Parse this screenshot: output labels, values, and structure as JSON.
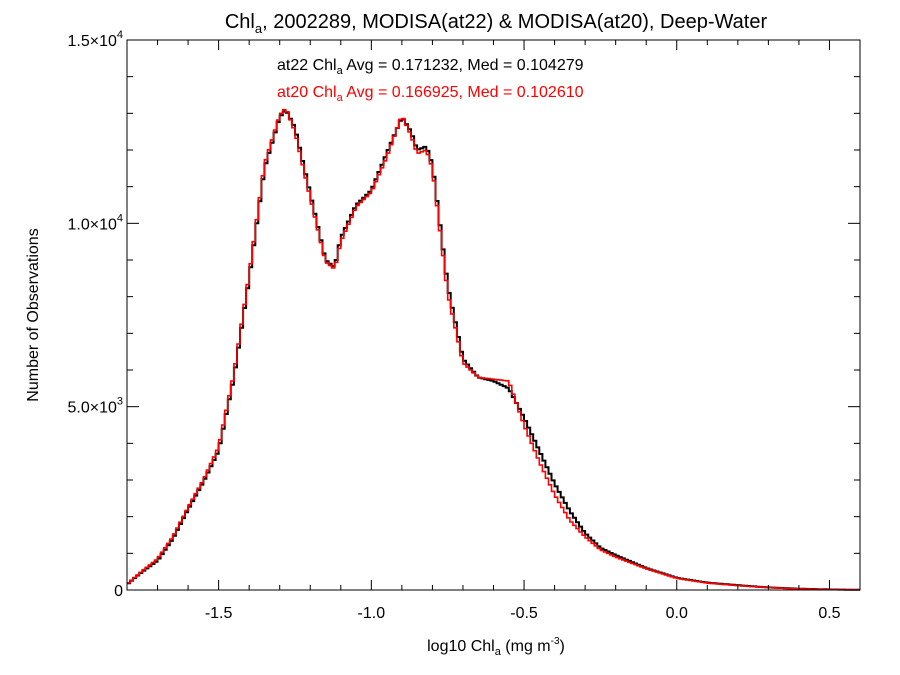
{
  "chart_data": {
    "type": "line",
    "title_main": "Chl",
    "title_sub": "a",
    "title_rest": ", 2002289, MODISA(at22) & MODISA(at20), Deep-Water",
    "xlabel_main": "log10 Chl",
    "xlabel_sub": "a",
    "xlabel_unit_pre": " (mg m",
    "xlabel_unit_sup": "-3",
    "xlabel_unit_post": ")",
    "ylabel": "Number of Observations",
    "xlim": [
      -1.8,
      0.6
    ],
    "ylim": [
      0,
      15000
    ],
    "x_ticks": [
      {
        "value": -1.5,
        "label": "-1.5"
      },
      {
        "value": -1.0,
        "label": "-1.0"
      },
      {
        "value": -0.5,
        "label": "-0.5"
      },
      {
        "value": 0.0,
        "label": "0.0"
      },
      {
        "value": 0.5,
        "label": "0.5"
      }
    ],
    "y_ticks": [
      {
        "value": 0,
        "mantissa": "0",
        "exp": ""
      },
      {
        "value": 5000,
        "mantissa": "5.0×10",
        "exp": "3"
      },
      {
        "value": 10000,
        "mantissa": "1.0×10",
        "exp": "4"
      },
      {
        "value": 15000,
        "mantissa": "1.5×10",
        "exp": "4"
      }
    ],
    "grid": false,
    "annotations": [
      {
        "pre": "at22 Chl",
        "sub": "a",
        "post": " Avg = 0.171232, Med = 0.104279",
        "color": "#000000"
      },
      {
        "pre": "at20 Chl",
        "sub": "a",
        "post": " Avg = 0.166925, Med = 0.102610",
        "color": "#ff0000"
      }
    ],
    "series": [
      {
        "name": "at22",
        "color": "#000000",
        "x": [
          -1.8,
          -1.75,
          -1.7,
          -1.65,
          -1.6,
          -1.55,
          -1.5,
          -1.45,
          -1.4,
          -1.35,
          -1.3,
          -1.28,
          -1.25,
          -1.2,
          -1.15,
          -1.12,
          -1.1,
          -1.05,
          -1.0,
          -0.95,
          -0.9,
          -0.87,
          -0.85,
          -0.82,
          -0.8,
          -0.75,
          -0.7,
          -0.65,
          -0.6,
          -0.55,
          -0.5,
          -0.45,
          -0.4,
          -0.35,
          -0.3,
          -0.25,
          -0.2,
          -0.1,
          0.0,
          0.1,
          0.2,
          0.3,
          0.4,
          0.5,
          0.6
        ],
        "y": [
          150,
          500,
          800,
          1400,
          2200,
          2950,
          3800,
          5800,
          8500,
          11500,
          12900,
          13100,
          12600,
          10800,
          9000,
          8800,
          9600,
          10500,
          10900,
          11900,
          12900,
          12500,
          12000,
          12100,
          11600,
          8300,
          6300,
          5800,
          5700,
          5500,
          4700,
          3800,
          2900,
          2150,
          1550,
          1150,
          950,
          600,
          330,
          200,
          130,
          70,
          35,
          15,
          5
        ]
      },
      {
        "name": "at20",
        "color": "#ff0000",
        "x": [
          -1.8,
          -1.75,
          -1.7,
          -1.65,
          -1.6,
          -1.55,
          -1.5,
          -1.45,
          -1.4,
          -1.35,
          -1.3,
          -1.28,
          -1.25,
          -1.2,
          -1.15,
          -1.12,
          -1.1,
          -1.05,
          -1.0,
          -0.95,
          -0.9,
          -0.87,
          -0.85,
          -0.82,
          -0.8,
          -0.75,
          -0.7,
          -0.65,
          -0.6,
          -0.55,
          -0.5,
          -0.45,
          -0.4,
          -0.35,
          -0.3,
          -0.25,
          -0.2,
          -0.1,
          0.0,
          0.1,
          0.2,
          0.3,
          0.4,
          0.5,
          0.6
        ],
        "y": [
          160,
          520,
          850,
          1450,
          2250,
          3000,
          3900,
          5900,
          8600,
          11600,
          12950,
          13150,
          12500,
          10700,
          8950,
          8750,
          9500,
          10450,
          10850,
          11800,
          12950,
          12400,
          11900,
          12000,
          11500,
          8100,
          6200,
          5800,
          5750,
          5700,
          4500,
          3500,
          2600,
          1900,
          1450,
          1100,
          900,
          580,
          320,
          190,
          120,
          65,
          30,
          12,
          5
        ]
      }
    ]
  }
}
